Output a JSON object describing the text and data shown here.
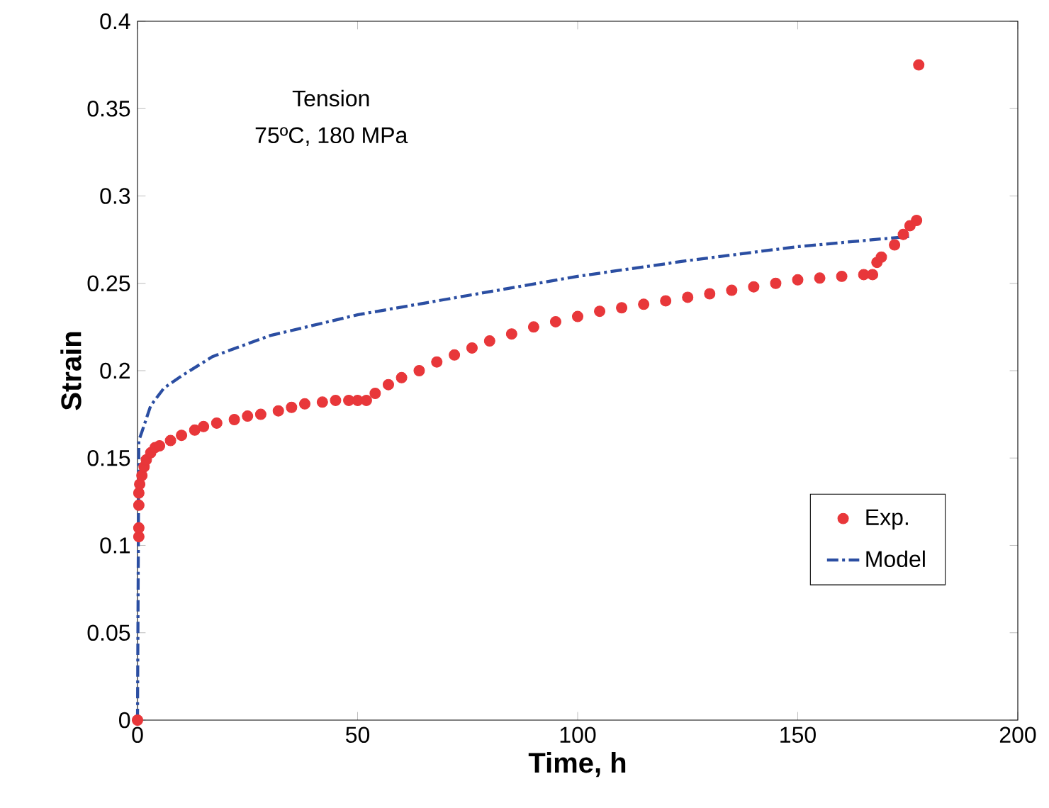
{
  "chart_data": {
    "type": "scatter",
    "xlabel": "Time, h",
    "ylabel": "Strain",
    "annotations": [
      "Tension",
      "75ºC, 180 MPa"
    ],
    "xlim": [
      0,
      200
    ],
    "ylim": [
      0,
      0.4
    ],
    "xticks": [
      0,
      50,
      100,
      150,
      200
    ],
    "yticks": [
      0,
      0.05,
      0.1,
      0.15,
      0.2,
      0.25,
      0.3,
      0.35,
      0.4
    ],
    "legend": "right",
    "series": [
      {
        "name": "Exp.",
        "marker": "circle",
        "color": "#e8373a",
        "x": [
          0,
          0.3,
          0.3,
          0.3,
          0.3,
          0.5,
          1,
          1.5,
          2,
          3,
          4,
          5,
          7.5,
          10,
          13,
          15,
          18,
          22,
          25,
          28,
          32,
          35,
          38,
          42,
          45,
          48,
          50,
          52,
          54,
          57,
          60,
          64,
          68,
          72,
          76,
          80,
          85,
          90,
          95,
          100,
          105,
          110,
          115,
          120,
          125,
          130,
          135,
          140,
          145,
          150,
          155,
          160,
          165,
          167,
          168,
          169,
          172,
          174,
          175.5,
          177,
          177.5
        ],
        "values": [
          0,
          0.105,
          0.11,
          0.123,
          0.13,
          0.135,
          0.14,
          0.145,
          0.149,
          0.153,
          0.156,
          0.157,
          0.16,
          0.163,
          0.166,
          0.168,
          0.17,
          0.172,
          0.174,
          0.175,
          0.177,
          0.179,
          0.181,
          0.182,
          0.183,
          0.183,
          0.183,
          0.183,
          0.187,
          0.192,
          0.196,
          0.2,
          0.205,
          0.209,
          0.213,
          0.217,
          0.221,
          0.225,
          0.228,
          0.231,
          0.234,
          0.236,
          0.238,
          0.24,
          0.242,
          0.244,
          0.246,
          0.248,
          0.25,
          0.252,
          0.253,
          0.254,
          0.255,
          0.255,
          0.262,
          0.265,
          0.272,
          0.278,
          0.283,
          0.286,
          0.375
        ]
      },
      {
        "name": "Model",
        "type": "line",
        "marker": "none",
        "line_style": "dashed",
        "color": "#2b4ea2",
        "x": [
          0,
          0.3,
          1,
          3,
          6,
          10,
          17,
          30,
          50,
          75,
          100,
          125,
          150,
          176
        ],
        "values": [
          0,
          0.16,
          0.165,
          0.18,
          0.19,
          0.197,
          0.208,
          0.22,
          0.232,
          0.243,
          0.254,
          0.263,
          0.271,
          0.277
        ]
      }
    ]
  }
}
